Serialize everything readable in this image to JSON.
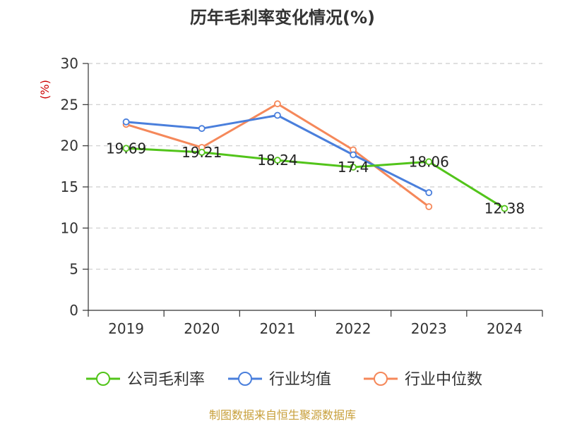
{
  "chart_data": {
    "type": "line",
    "title": "历年毛利率变化情况(%)",
    "ylabel": "(%)",
    "xlabel": "",
    "categories": [
      "2019",
      "2020",
      "2021",
      "2022",
      "2023",
      "2024"
    ],
    "ylim": [
      0,
      30
    ],
    "yticks": [
      0,
      5,
      10,
      15,
      20,
      25,
      30
    ],
    "grid": "horizontal-dashed",
    "legend_position": "bottom",
    "series": [
      {
        "name": "公司毛利率",
        "color": "#52c41a",
        "values": [
          19.69,
          19.21,
          18.24,
          17.4,
          18.06,
          12.38
        ],
        "labels": [
          "19.69",
          "19.21",
          "18.24",
          "17.4",
          "18.06",
          "12.38"
        ]
      },
      {
        "name": "行业均值",
        "color": "#4a7fdc",
        "values": [
          22.9,
          22.1,
          23.7,
          18.9,
          14.3,
          null
        ]
      },
      {
        "name": "行业中位数",
        "color": "#f5885a",
        "values": [
          22.6,
          19.8,
          25.1,
          19.5,
          12.6,
          null
        ]
      }
    ]
  },
  "source": "制图数据来自恒生聚源数据库",
  "colors": {
    "title": "#333333",
    "axis": "#333333",
    "grid": "#cccccc",
    "ylabel": "#cc0000",
    "source": "#c8a03c"
  }
}
